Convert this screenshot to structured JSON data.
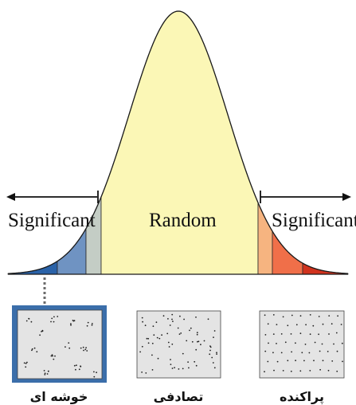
{
  "labels": {
    "left_significant": "Significant",
    "center": "Random",
    "right_significant": "Significant"
  },
  "panels": {
    "clustered": "خوشه ای",
    "random": "تصادفی",
    "dispersed": "پراکنده"
  },
  "colors": {
    "center_fill": "#fbf7b6",
    "left_tail": [
      "#2a62a8",
      "#6f93c2",
      "#c4cdc5"
    ],
    "right_tail": [
      "#f6b480",
      "#f06f49",
      "#d0321d"
    ],
    "selected_frame": "#3b6eaa",
    "pattern_bg": "#e4e4e4"
  }
}
